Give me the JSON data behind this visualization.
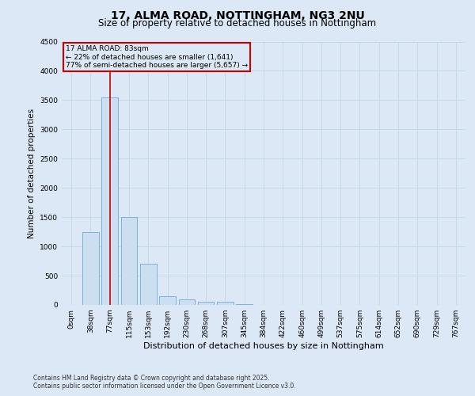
{
  "title": "17, ALMA ROAD, NOTTINGHAM, NG3 2NU",
  "subtitle": "Size of property relative to detached houses in Nottingham",
  "xlabel": "Distribution of detached houses by size in Nottingham",
  "ylabel": "Number of detached properties",
  "categories": [
    "0sqm",
    "38sqm",
    "77sqm",
    "115sqm",
    "153sqm",
    "192sqm",
    "230sqm",
    "268sqm",
    "307sqm",
    "345sqm",
    "384sqm",
    "422sqm",
    "460sqm",
    "499sqm",
    "537sqm",
    "575sqm",
    "614sqm",
    "652sqm",
    "690sqm",
    "729sqm",
    "767sqm"
  ],
  "values": [
    0,
    1250,
    3550,
    1500,
    700,
    150,
    100,
    50,
    50,
    10,
    5,
    0,
    0,
    0,
    0,
    0,
    5,
    0,
    0,
    0,
    0
  ],
  "bar_color": "#ccdff0",
  "bar_edge_color": "#7ab4d8",
  "line_color": "#cc0000",
  "annotation_text": "17 ALMA ROAD: 83sqm\n← 22% of detached houses are smaller (1,641)\n77% of semi-detached houses are larger (5,657) →",
  "annotation_box_color": "#cc0000",
  "property_bar_index": 2,
  "ylim": [
    0,
    4500
  ],
  "footer_line1": "Contains HM Land Registry data © Crown copyright and database right 2025.",
  "footer_line2": "Contains public sector information licensed under the Open Government Licence v3.0.",
  "bg_color": "#dce8f5",
  "grid_color": "#c8d8e8",
  "title_fontsize": 10,
  "subtitle_fontsize": 8.5,
  "xlabel_fontsize": 8,
  "ylabel_fontsize": 7.5,
  "tick_fontsize": 6.5,
  "footer_fontsize": 5.5
}
